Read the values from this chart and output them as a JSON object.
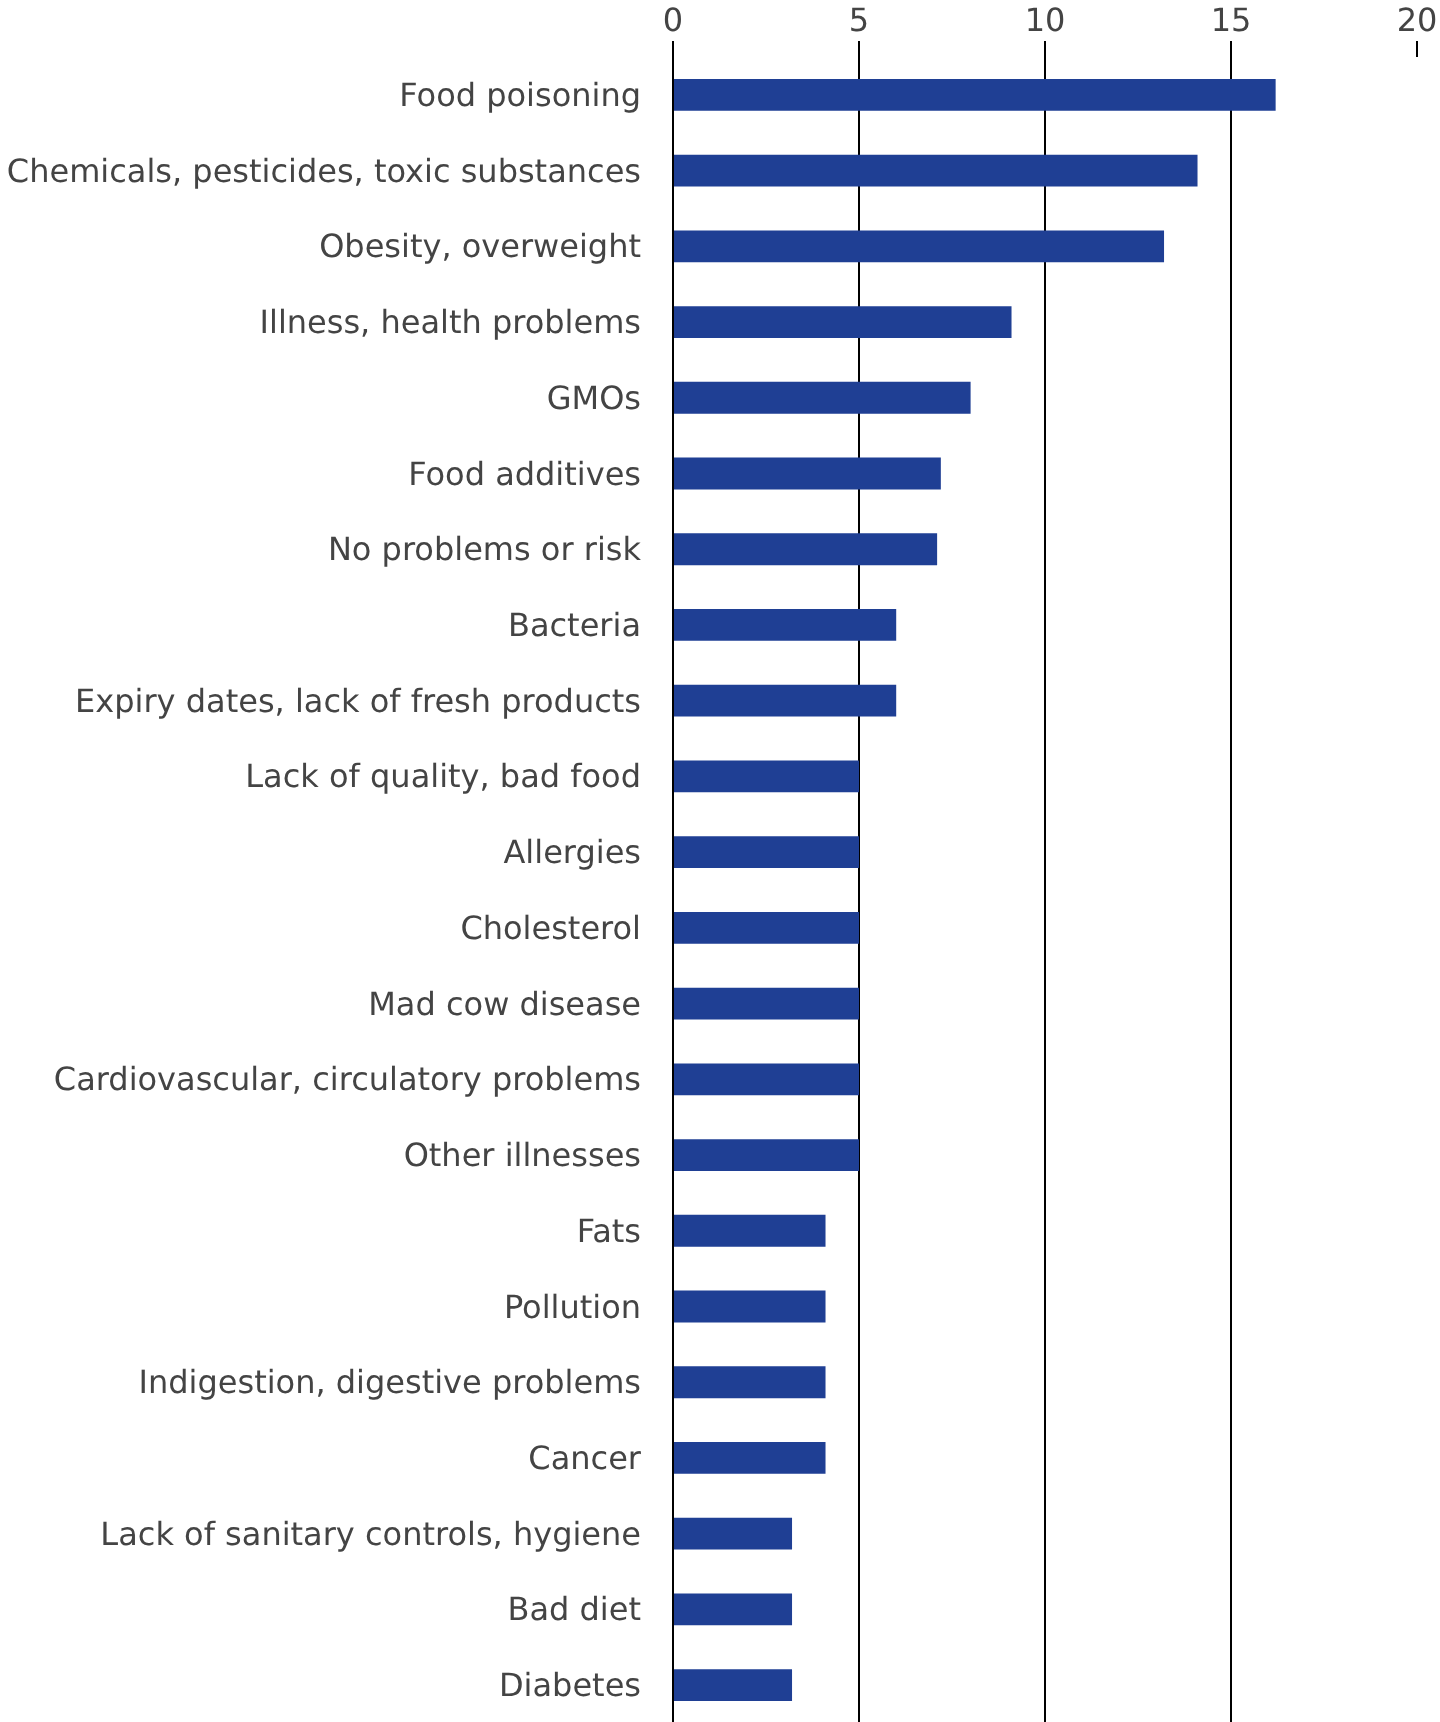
{
  "chart_data": {
    "type": "bar",
    "orientation": "horizontal",
    "categories": [
      "Food poisoning",
      "Chemicals, pesticides, toxic substances",
      "Obesity, overweight",
      "Illness, health problems",
      "GMOs",
      "Food additives",
      "No problems or risk",
      "Bacteria",
      "Expiry dates, lack of fresh products",
      "Lack of quality, bad food",
      "Allergies",
      "Cholesterol",
      "Mad cow disease",
      "Cardiovascular, circulatory problems",
      "Other illnesses",
      "Fats",
      "Pollution",
      "Indigestion, digestive problems",
      "Cancer",
      "Lack of sanitary controls, hygiene",
      "Bad diet",
      "Diabetes"
    ],
    "values": [
      16.2,
      14.1,
      13.2,
      9.1,
      8.0,
      7.2,
      7.1,
      6.0,
      6.0,
      5.0,
      5.0,
      5.0,
      5.0,
      5.0,
      5.0,
      4.1,
      4.1,
      4.1,
      4.1,
      3.2,
      3.2,
      3.2
    ],
    "color": "#1f3f94",
    "xlim": [
      0,
      20
    ],
    "xticks": [
      0,
      5,
      10,
      15,
      20
    ],
    "grid": "x"
  }
}
